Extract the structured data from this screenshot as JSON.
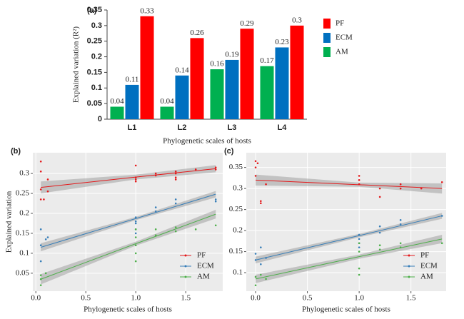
{
  "chart_data": [
    {
      "type": "bar",
      "panel_label": "(a)",
      "ylabel": "Explained variation (R²)",
      "xlabel": "Phylogenetic scales of hosts",
      "categories": [
        "L1",
        "L2",
        "L3",
        "L4"
      ],
      "series": [
        {
          "name": "AM",
          "color": "#00b050",
          "values": [
            0.04,
            0.04,
            0.16,
            0.17
          ]
        },
        {
          "name": "ECM",
          "color": "#0070c0",
          "values": [
            0.11,
            0.14,
            0.19,
            0.23
          ]
        },
        {
          "name": "PF",
          "color": "#ff0000",
          "values": [
            0.33,
            0.26,
            0.29,
            0.3
          ]
        }
      ],
      "ylim": [
        0,
        0.35
      ],
      "yticks": [
        0,
        0.05,
        0.1,
        0.15,
        0.2,
        0.25,
        0.3,
        0.35
      ],
      "grid": false
    },
    {
      "type": "scatter",
      "panel_label": "(b)",
      "ylabel": "Explained variation",
      "xlabel": "Phylogenetic scales of hosts",
      "background": "#ebebeb",
      "grid": true,
      "xlim": [
        -0.03,
        1.87
      ],
      "xticks": [
        {
          "value": 0,
          "label": "0.0"
        },
        0.5,
        {
          "value": 1,
          "label": "1.0"
        },
        1.5
      ],
      "ylim": [
        0.005,
        0.352
      ],
      "yticks": [
        0.05,
        0.1,
        0.15,
        0.2,
        0.25,
        0.3
      ],
      "series": [
        {
          "name": "PF",
          "color": "#e41a1c",
          "x": [
            0.05,
            0.05,
            0.05,
            0.05,
            0.08,
            0.12,
            0.12,
            1,
            1,
            1,
            1,
            1.2,
            1.2,
            1.4,
            1.4,
            1.4,
            1.4,
            1.6,
            1.8,
            1.8
          ],
          "values": [
            0.33,
            0.305,
            0.26,
            0.235,
            0.235,
            0.285,
            0.255,
            0.32,
            0.29,
            0.285,
            0.28,
            0.3,
            0.295,
            0.305,
            0.3,
            0.29,
            0.285,
            0.31,
            0.315,
            0.31
          ],
          "fit": {
            "x": [
              0.05,
              1.0,
              1.8
            ],
            "values": [
              0.265,
              0.291,
              0.312
            ],
            "lower": [
              0.25,
              0.285,
              0.303
            ],
            "upper": [
              0.28,
              0.297,
              0.321
            ]
          }
        },
        {
          "name": "ECM",
          "color": "#377eb8",
          "x": [
            0.05,
            0.05,
            0.05,
            0.1,
            0.12,
            1,
            1,
            1,
            1,
            1,
            1.2,
            1.2,
            1.4,
            1.4,
            1.8,
            1.8
          ],
          "values": [
            0.16,
            0.12,
            0.08,
            0.135,
            0.14,
            0.19,
            0.18,
            0.175,
            0.16,
            0.15,
            0.215,
            0.205,
            0.235,
            0.225,
            0.235,
            0.23
          ],
          "fit": {
            "x": [
              0.05,
              1.0,
              1.8
            ],
            "values": [
              0.115,
              0.187,
              0.248
            ],
            "lower": [
              0.105,
              0.183,
              0.24
            ],
            "upper": [
              0.125,
              0.191,
              0.256
            ]
          }
        },
        {
          "name": "AM",
          "color": "#4daf4a",
          "x": [
            0.05,
            0.05,
            0.05,
            0.1,
            1,
            1,
            1,
            1,
            1,
            1.2,
            1.2,
            1.4,
            1.4,
            1.6,
            1.8
          ],
          "values": [
            0.045,
            0.035,
            0.02,
            0.05,
            0.16,
            0.14,
            0.12,
            0.1,
            0.08,
            0.16,
            0.145,
            0.165,
            0.155,
            0.16,
            0.17
          ],
          "fit": {
            "x": [
              0.05,
              1.0,
              1.8
            ],
            "values": [
              0.035,
              0.124,
              0.198
            ],
            "lower": [
              0.022,
              0.119,
              0.187
            ],
            "upper": [
              0.048,
              0.129,
              0.209
            ]
          }
        }
      ]
    },
    {
      "type": "scatter",
      "panel_label": "(c)",
      "xlabel": "Phylogenetic scales of hosts",
      "background": "#ebebeb",
      "grid": true,
      "xlim": [
        -0.09,
        1.84
      ],
      "xticks": [
        {
          "value": 0,
          "label": "0.0"
        },
        0.5,
        {
          "value": 1,
          "label": "1.0"
        },
        1.5
      ],
      "ylim": [
        0.056,
        0.385
      ],
      "yticks": [
        0.1,
        0.15,
        0.2,
        0.25,
        0.3,
        0.35
      ],
      "series": [
        {
          "name": "PF",
          "color": "#e41a1c",
          "x": [
            0,
            0,
            0,
            0.02,
            0.05,
            0.05,
            0.1,
            1,
            1,
            1,
            1.2,
            1.2,
            1.4,
            1.4,
            1.6,
            1.8
          ],
          "values": [
            0.365,
            0.35,
            0.33,
            0.36,
            0.27,
            0.265,
            0.31,
            0.33,
            0.32,
            0.31,
            0.3,
            0.28,
            0.31,
            0.3,
            0.3,
            0.315
          ],
          "fit": {
            "x": [
              0,
              1.0,
              1.8
            ],
            "values": [
              0.32,
              0.309,
              0.3
            ],
            "lower": [
              0.307,
              0.304,
              0.288
            ],
            "upper": [
              0.333,
              0.314,
              0.312
            ]
          }
        },
        {
          "name": "ECM",
          "color": "#377eb8",
          "x": [
            0,
            0,
            0.05,
            0.05,
            0.1,
            1,
            1,
            1,
            1,
            1.2,
            1.2,
            1.4,
            1.4,
            1.8
          ],
          "values": [
            0.145,
            0.13,
            0.16,
            0.12,
            0.135,
            0.19,
            0.18,
            0.17,
            0.16,
            0.21,
            0.195,
            0.225,
            0.215,
            0.235
          ],
          "fit": {
            "x": [
              0,
              1.0,
              1.8
            ],
            "values": [
              0.13,
              0.188,
              0.235
            ],
            "lower": [
              0.122,
              0.184,
              0.228
            ],
            "upper": [
              0.138,
              0.192,
              0.242
            ]
          }
        },
        {
          "name": "AM",
          "color": "#4daf4a",
          "x": [
            0,
            0,
            0.05,
            0.1,
            1,
            1,
            1,
            1,
            1.2,
            1.2,
            1.4,
            1.4,
            1.8
          ],
          "values": [
            0.09,
            0.07,
            0.095,
            0.085,
            0.17,
            0.15,
            0.11,
            0.095,
            0.165,
            0.155,
            0.17,
            0.16,
            0.17
          ],
          "fit": {
            "x": [
              0,
              1.0,
              1.8
            ],
            "values": [
              0.085,
              0.138,
              0.18
            ],
            "lower": [
              0.075,
              0.133,
              0.17
            ],
            "upper": [
              0.095,
              0.143,
              0.19
            ]
          }
        }
      ]
    }
  ]
}
